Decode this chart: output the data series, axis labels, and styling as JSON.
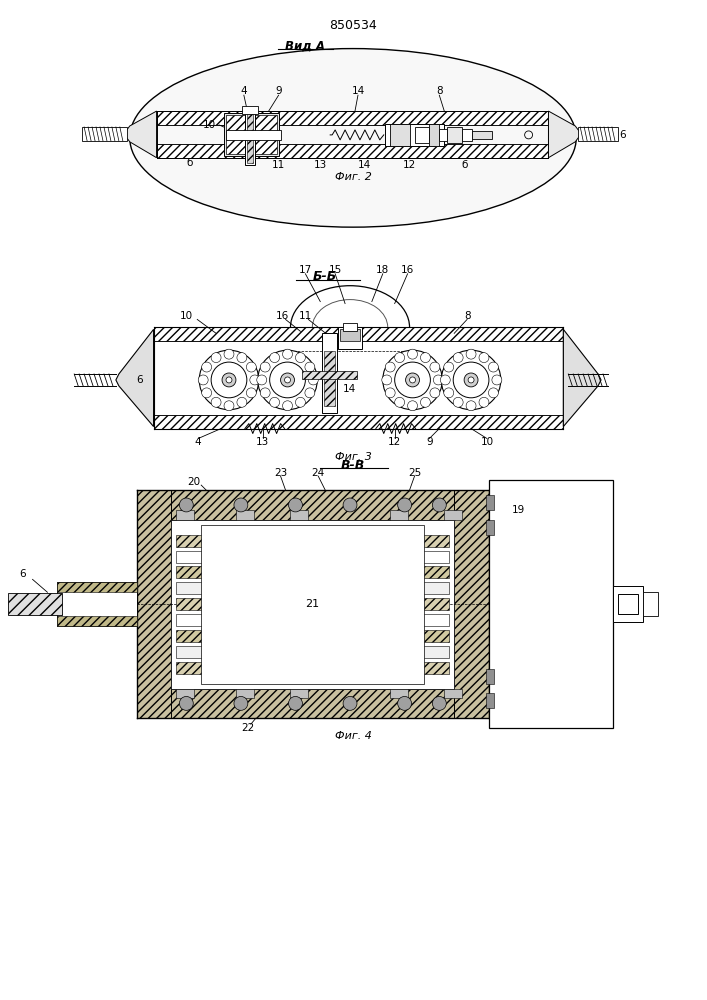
{
  "title": "850534",
  "bg_color": "#ffffff",
  "fig2_label": "Вид А",
  "fig2_caption": "Фиг. 2",
  "fig3_label": "Б-Б",
  "fig3_caption": "Фиг. 3",
  "fig4_label": "В-В",
  "fig4_caption": "Фиг. 4",
  "page_width": 7.07,
  "page_height": 10.0,
  "dpi": 100
}
